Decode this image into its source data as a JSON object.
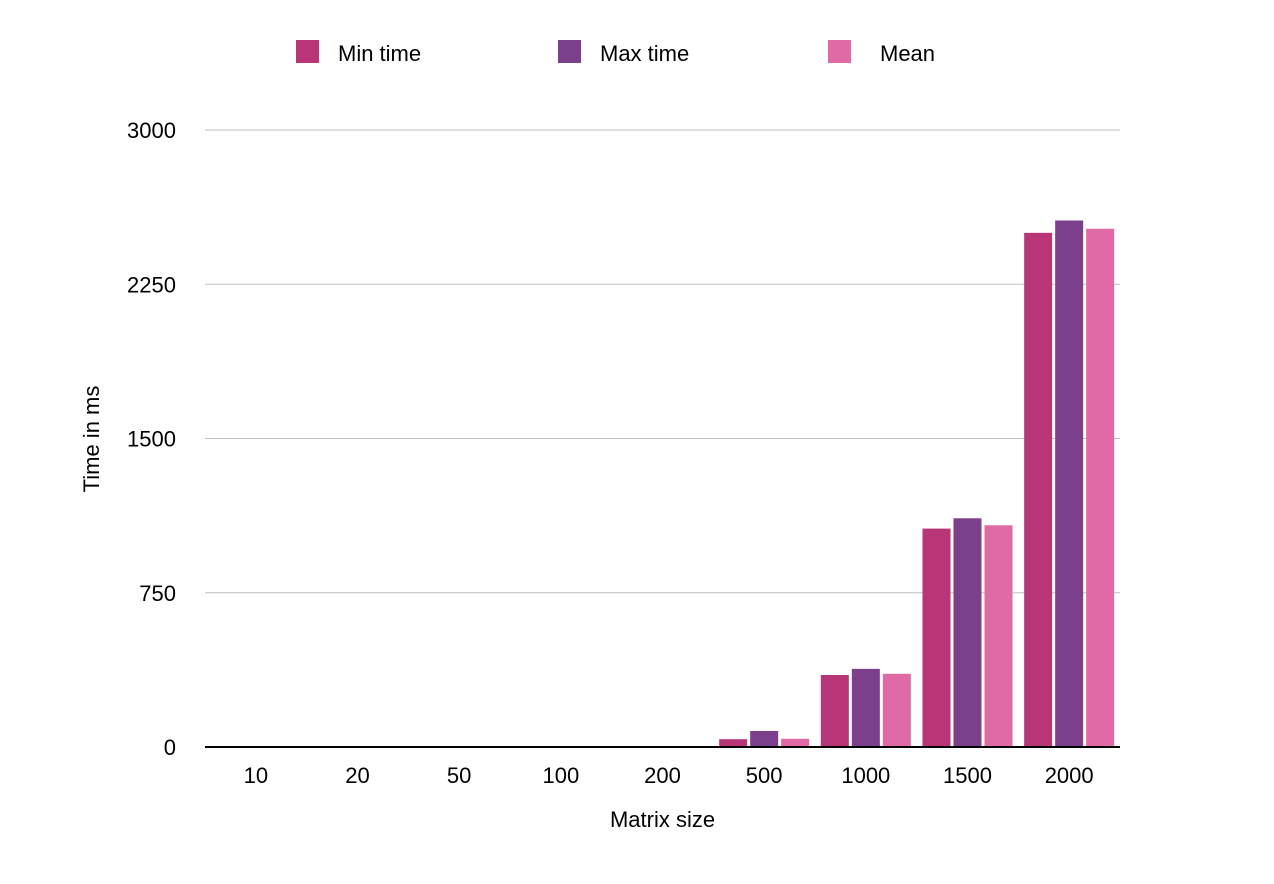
{
  "chart_data": {
    "type": "bar",
    "title": "",
    "xlabel": "Matrix size",
    "ylabel": "Time in ms",
    "categories": [
      "10",
      "20",
      "50",
      "100",
      "200",
      "500",
      "1000",
      "1500",
      "2000"
    ],
    "ylim": [
      0,
      3000
    ],
    "yticks": [
      0,
      750,
      1500,
      2250,
      3000
    ],
    "grid": true,
    "legend_position": "top",
    "series": [
      {
        "name": "Min time",
        "color": "#B83577",
        "values": [
          0,
          0,
          0,
          0,
          0,
          38,
          350,
          1062,
          2500
        ]
      },
      {
        "name": "Max time",
        "color": "#7B3F8C",
        "values": [
          0,
          0,
          0,
          0,
          0,
          78,
          380,
          1112,
          2560
        ]
      },
      {
        "name": "Mean",
        "color": "#E06AA6",
        "values": [
          0,
          0,
          0,
          0,
          0,
          40,
          356,
          1078,
          2520
        ]
      }
    ]
  }
}
